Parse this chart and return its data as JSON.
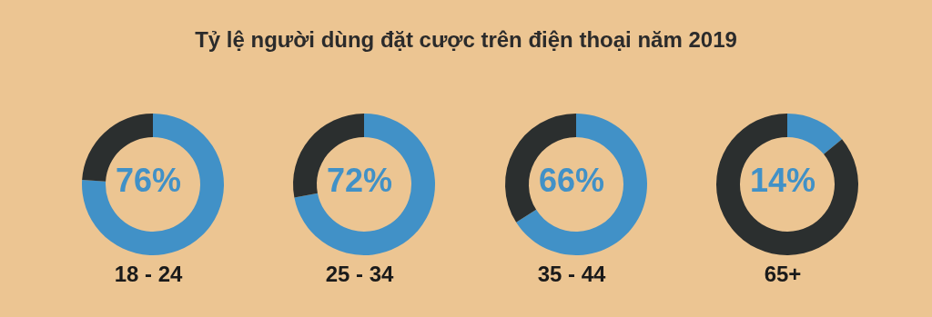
{
  "chart_data": [
    {
      "type": "donut",
      "title": "Tỷ lệ người dùng đặt cược trên điện thoại năm 2019",
      "xlabel": "18 - 24",
      "categories": [
        null,
        null
      ],
      "values": [
        76,
        24
      ],
      "colors": [
        "#4191c7",
        "#2b2f2f"
      ],
      "annotations": [
        "76%"
      ],
      "legend": false
    },
    {
      "type": "donut",
      "xlabel": "25 - 34",
      "categories": [
        null,
        null
      ],
      "values": [
        72,
        28
      ],
      "colors": [
        "#4191c7",
        "#2b2f2f"
      ],
      "annotations": [
        "72%"
      ],
      "legend": false
    },
    {
      "type": "donut",
      "xlabel": "35 - 44",
      "categories": [
        null,
        null
      ],
      "values": [
        66,
        34
      ],
      "colors": [
        "#4191c7",
        "#2b2f2f"
      ],
      "annotations": [
        "66%"
      ],
      "legend": false
    },
    {
      "type": "donut",
      "xlabel": "65+",
      "categories": [
        null,
        null
      ],
      "values": [
        14,
        86
      ],
      "colors": [
        "#4191c7",
        "#2b2f2f"
      ],
      "annotations": [
        "14%"
      ],
      "legend": false
    }
  ]
}
